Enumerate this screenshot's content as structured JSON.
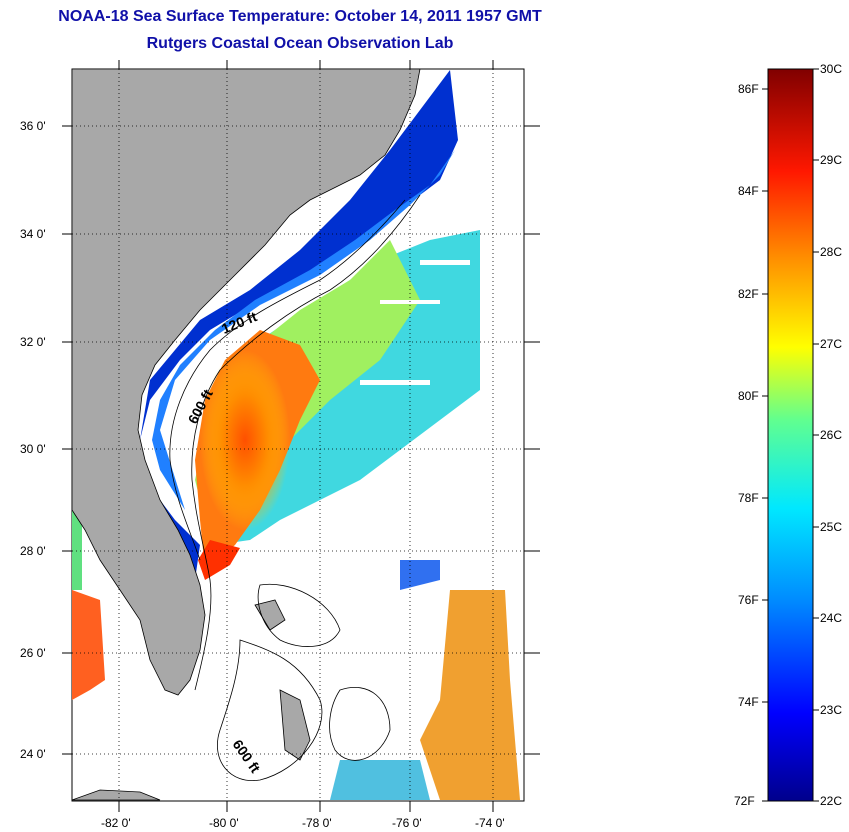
{
  "header": {
    "title": "NOAA-18 Sea Surface Temperature:  October 14, 2011 1957 GMT",
    "subtitle": "Rutgers Coastal Ocean Observation Lab"
  },
  "map": {
    "lat_labels": [
      "36 0'",
      "34 0'",
      "32 0'",
      "30 0'",
      "28 0'",
      "26 0'",
      "24 0'"
    ],
    "lon_labels": [
      "-82 0'",
      "-80 0'",
      "-78 0'",
      "-76 0'",
      "-74 0'"
    ],
    "contours": [
      "120 ft",
      "600 ft",
      "600 ft"
    ],
    "colors": {
      "land": "#a8a8a8",
      "water_nodata": "#ffffff"
    }
  },
  "colorbar": {
    "fahrenheit": [
      "86F",
      "84F",
      "82F",
      "80F",
      "78F",
      "76F",
      "74F",
      "72F"
    ],
    "celsius": [
      "30C",
      "29C",
      "28C",
      "27C",
      "26C",
      "25C",
      "24C",
      "23C",
      "22C"
    ]
  }
}
